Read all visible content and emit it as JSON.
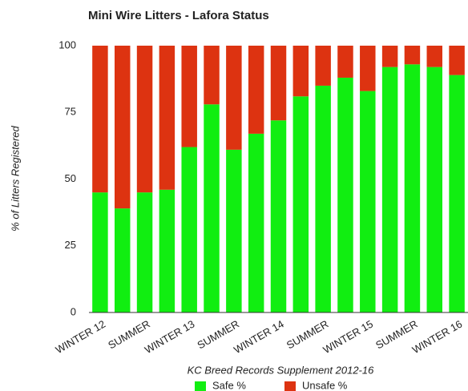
{
  "chart_data": {
    "type": "stacked_bar",
    "title": "Mini Wire Litters - Lafora Status",
    "x_label": "KC Breed Records Supplement 2012-16",
    "y_label": "% of Litters Registered",
    "categories": [
      "WINTER 12",
      null,
      "SUMMER",
      null,
      "WINTER 13",
      null,
      "SUMMER",
      null,
      "WINTER 14",
      null,
      "SUMMER",
      null,
      "WINTER 15",
      null,
      "SUMMER",
      null,
      "WINTER 16"
    ],
    "series": [
      {
        "name": "Safe %",
        "color": "#11ee11",
        "values": [
          45,
          39,
          45,
          46,
          62,
          78,
          61,
          67,
          72,
          81,
          85,
          88,
          83,
          92,
          93,
          92,
          89
        ]
      },
      {
        "name": "Unsafe %",
        "color": "#dd3311",
        "values": [
          55,
          61,
          55,
          54,
          38,
          22,
          39,
          33,
          28,
          19,
          15,
          12,
          17,
          8,
          7,
          8,
          11
        ]
      }
    ],
    "ylim": [
      0,
      100
    ],
    "yticks": [
      0,
      25,
      50,
      75,
      100
    ],
    "grid": false,
    "legend": "bottom"
  }
}
